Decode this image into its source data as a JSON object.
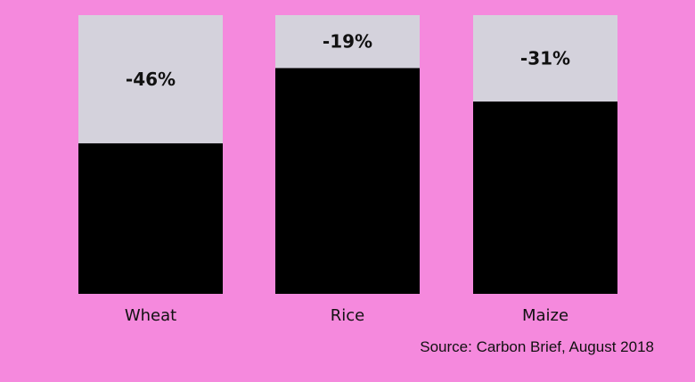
{
  "chart_data": {
    "type": "bar",
    "categories": [
      "Wheat",
      "Rice",
      "Maize"
    ],
    "series": [
      {
        "values": [
          54,
          81,
          69
        ]
      },
      {
        "values": [
          46,
          19,
          31
        ]
      }
    ],
    "data_labels": [
      "-46%",
      "-19%",
      "-31%"
    ],
    "title": "",
    "xlabel": "",
    "ylabel": "",
    "ylim": [
      0,
      100
    ],
    "stacked": true,
    "grid": false,
    "colors": {
      "remaining": "#000000",
      "loss": "#d4d2dc",
      "background": "#f589dd",
      "text": "#111111"
    }
  },
  "source": "Source: Carbon Brief, August 2018"
}
